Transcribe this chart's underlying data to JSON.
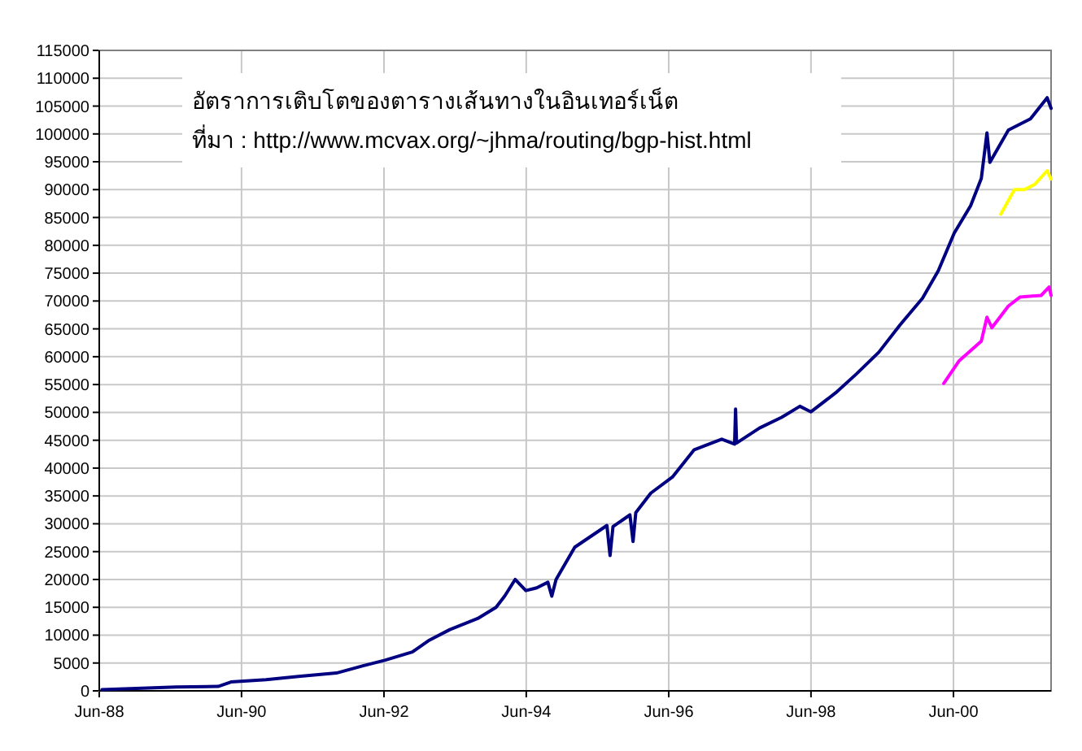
{
  "chart_data": {
    "type": "line",
    "title": "อัตราการเติบโตของตารางเส้นทางในอินเทอร์เน็ต",
    "annotations": [
      "ที่มา : http://www.mcvax.org/~jhma/routing/bgp-hist.html"
    ],
    "xlim": [
      "1988-06-01",
      "2001-10-15"
    ],
    "xticks": [
      {
        "value": "1988-06-01",
        "label": "Jun-88"
      },
      {
        "value": "1990-06-01",
        "label": "Jun-90"
      },
      {
        "value": "1992-06-01",
        "label": "Jun-92"
      },
      {
        "value": "1994-06-01",
        "label": "Jun-94"
      },
      {
        "value": "1996-06-01",
        "label": "Jun-96"
      },
      {
        "value": "1998-06-01",
        "label": "Jun-98"
      },
      {
        "value": "2000-06-01",
        "label": "Jun-00"
      }
    ],
    "ylim": [
      0,
      115000
    ],
    "yticks": [
      0,
      5000,
      10000,
      15000,
      20000,
      25000,
      30000,
      35000,
      40000,
      45000,
      50000,
      55000,
      60000,
      65000,
      70000,
      75000,
      80000,
      85000,
      90000,
      95000,
      100000,
      105000,
      110000,
      115000
    ],
    "grid": true,
    "series": [
      {
        "color": "#000080",
        "x": [
          "1988-06-15",
          "1989-07-01",
          "1990-02-01",
          "1990-04-08",
          "1990-10-05",
          "1991-03-20",
          "1991-10-01",
          "1992-02-15",
          "1992-06-05",
          "1992-10-25",
          "1993-01-15",
          "1993-05-05",
          "1993-09-25",
          "1993-12-28",
          "1994-02-10",
          "1994-04-05",
          "1994-05-30",
          "1994-07-25",
          "1994-09-20",
          "1994-10-10",
          "1994-11-01",
          "1995-02-05",
          "1995-07-20",
          "1995-08-05",
          "1995-08-20",
          "1995-11-15",
          "1995-12-01",
          "1995-12-15",
          "1996-03-01",
          "1996-06-20",
          "1996-10-10",
          "1997-02-28",
          "1997-05-05",
          "1997-05-10",
          "1997-05-15",
          "1997-09-10",
          "1998-01-01",
          "1998-04-05",
          "1998-06-01",
          "1998-10-05",
          "1999-01-20",
          "1999-05-15",
          "1999-09-01",
          "1999-12-25",
          "2000-03-15",
          "2000-06-05",
          "2000-08-28",
          "2000-10-22",
          "2000-11-20",
          "2000-12-05",
          "2001-03-10",
          "2001-07-01",
          "2001-09-25",
          "2001-10-15"
        ],
        "values": [
          200,
          700,
          800,
          1600,
          2000,
          2600,
          3200,
          4500,
          5500,
          7000,
          9000,
          11000,
          13000,
          15000,
          17000,
          20000,
          18000,
          18500,
          19500,
          17000,
          20000,
          25800,
          29700,
          24300,
          29500,
          31600,
          26800,
          32000,
          35500,
          38400,
          43300,
          45200,
          44300,
          50600,
          44500,
          47200,
          49100,
          51100,
          50100,
          53500,
          56900,
          60800,
          65700,
          70500,
          75400,
          82200,
          87100,
          92000,
          100200,
          94900,
          100700,
          102700,
          106500,
          104600
        ]
      },
      {
        "color": "#ffff00",
        "x": [
          "2001-01-30",
          "2001-04-10",
          "2001-06-01",
          "2001-07-25",
          "2001-09-25",
          "2001-10-15"
        ],
        "values": [
          85600,
          90000,
          90000,
          91000,
          93400,
          91900
        ]
      },
      {
        "color": "#ff00ff",
        "x": [
          "2000-04-12",
          "2000-07-01",
          "2000-10-22",
          "2000-11-20",
          "2000-12-15",
          "2001-03-10",
          "2001-05-08",
          "2001-08-25",
          "2001-10-05",
          "2001-10-15"
        ],
        "values": [
          55200,
          59300,
          62800,
          67100,
          65200,
          69100,
          70700,
          71000,
          72500,
          71000
        ]
      }
    ]
  }
}
